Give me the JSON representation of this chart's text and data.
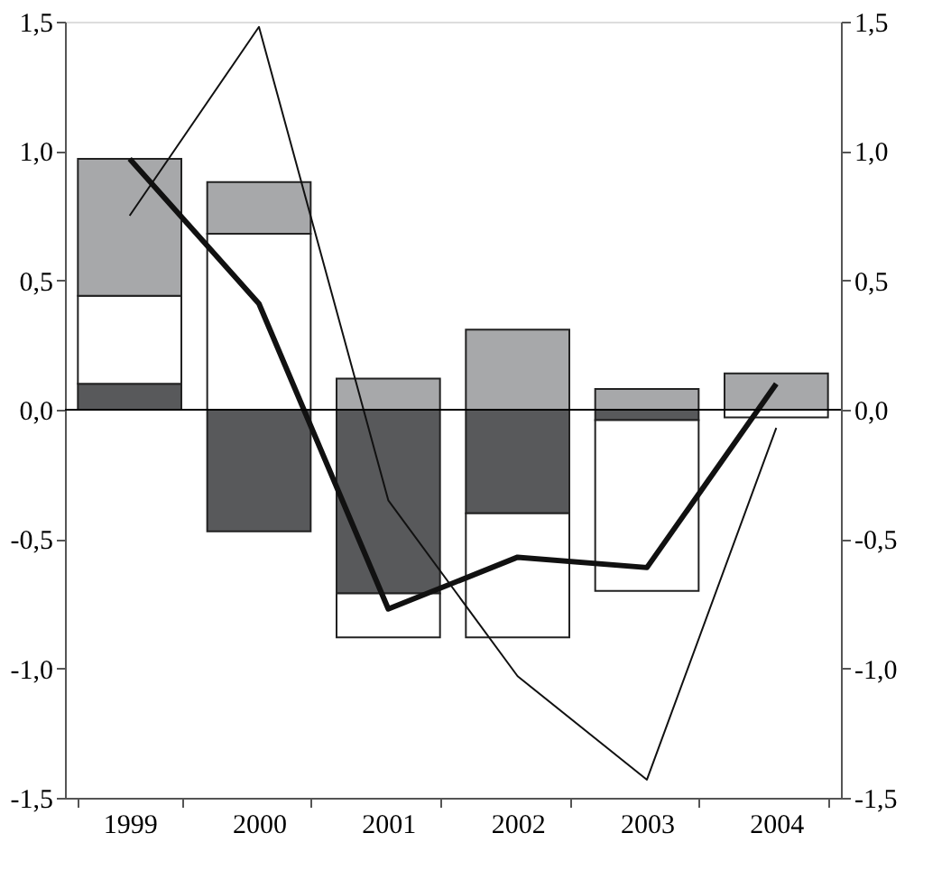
{
  "chart_data": {
    "type": "bar",
    "stacked": true,
    "categories": [
      "1999",
      "2000",
      "2001",
      "2002",
      "2003",
      "2004"
    ],
    "series": [
      {
        "color": "#58595b",
        "values": [
          0.1,
          -0.47,
          -0.71,
          -0.4,
          -0.04,
          0
        ]
      },
      {
        "color": "#ffffff",
        "values": [
          0.34,
          0.68,
          -0.17,
          -0.48,
          -0.66,
          -0.03
        ]
      },
      {
        "color": "#a7a8aa",
        "values": [
          0.53,
          0.2,
          0.12,
          0.31,
          0.08,
          0.14
        ]
      },
      {
        "type": "line",
        "color": "#111111",
        "values": [
          0.97,
          0.41,
          -0.77,
          -0.57,
          -0.61,
          0.1
        ]
      },
      {
        "type": "line",
        "color": "#111111",
        "values": [
          0.75,
          1.48,
          -0.35,
          -1.03,
          -1.43,
          -0.07
        ]
      }
    ],
    "ylim": [
      -1.5,
      1.5
    ],
    "yticks": [
      {
        "value": -1.5,
        "label": "-1,5"
      },
      {
        "value": -1,
        "label": "-1,0"
      },
      {
        "value": -0.5,
        "label": "-0,5"
      },
      {
        "value": 0,
        "label": "0,0"
      },
      {
        "value": 0.5,
        "label": "0,5"
      },
      {
        "value": 1,
        "label": "1,0"
      },
      {
        "value": 1.5,
        "label": "1,5"
      }
    ],
    "y2lim": [
      -1.5,
      1.5
    ],
    "y2ticks": [
      {
        "value": -1.5,
        "label": "-1,5"
      },
      {
        "value": -1,
        "label": "-1,0"
      },
      {
        "value": -0.5,
        "label": "-0,5"
      },
      {
        "value": 0,
        "label": "0,0"
      },
      {
        "value": 0.5,
        "label": "0,5"
      },
      {
        "value": 1,
        "label": "1,0"
      },
      {
        "value": 1.5,
        "label": "1,5"
      }
    ],
    "ref_lines": [
      {
        "axis": "y",
        "value": 0,
        "color": "#000000"
      }
    ],
    "grid": false,
    "legend": false,
    "line_style": "solid",
    "marker": "none"
  }
}
